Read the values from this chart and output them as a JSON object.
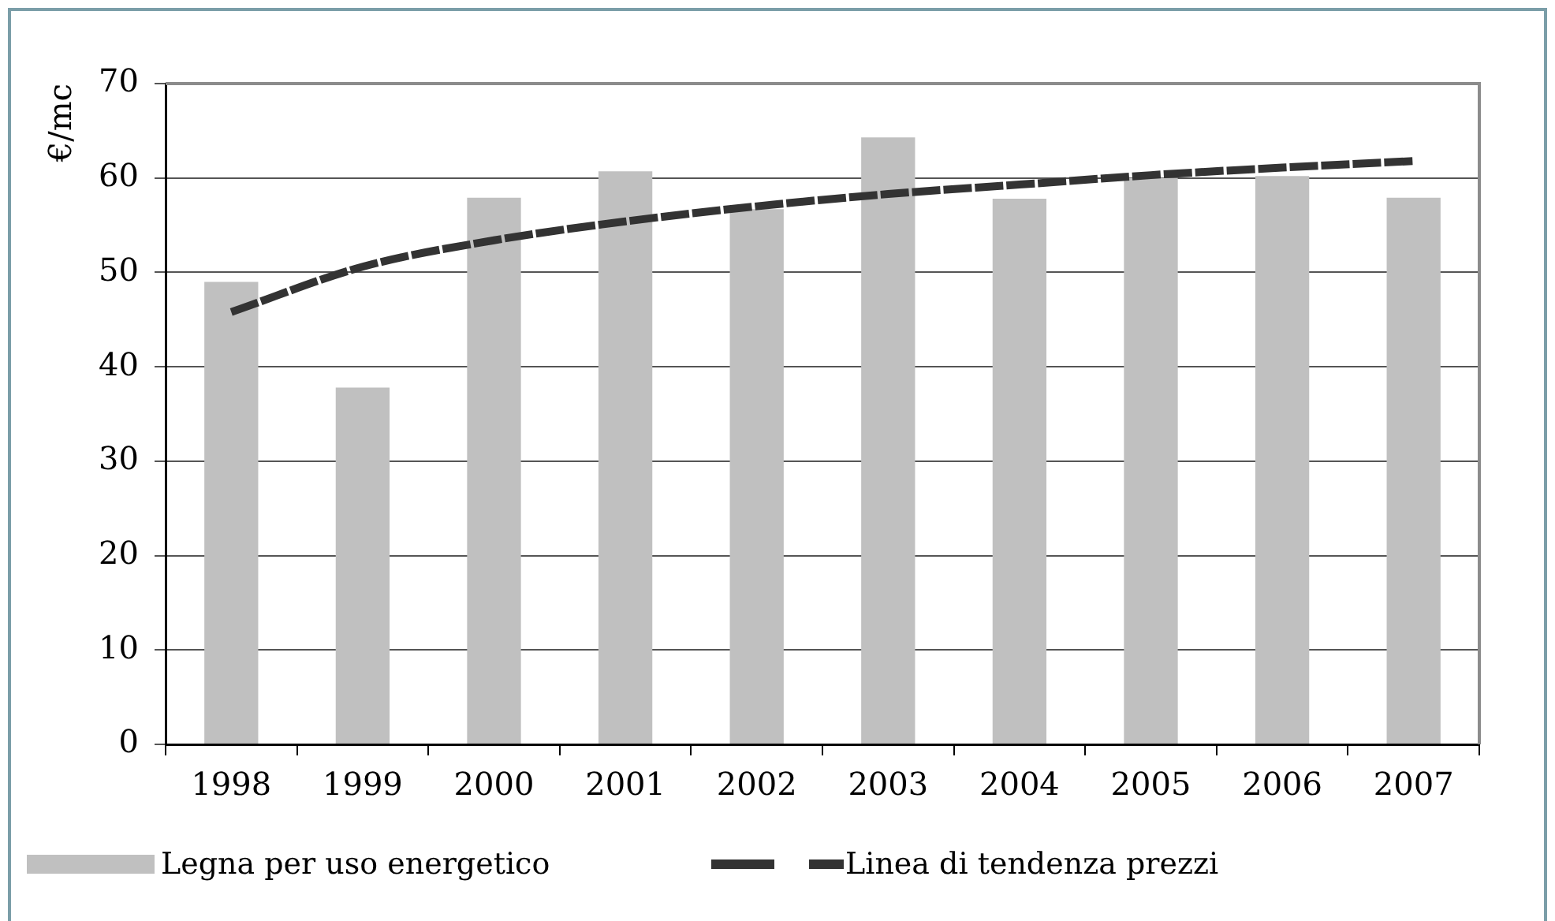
{
  "chart_data": {
    "type": "bar",
    "ylabel": "€/mc",
    "categories": [
      "1998",
      "1999",
      "2000",
      "2001",
      "2002",
      "2003",
      "2004",
      "2005",
      "2006",
      "2007"
    ],
    "series": [
      {
        "name": "Legna per uso energetico",
        "color": "#c0c0c0",
        "values": [
          49,
          37.8,
          57.9,
          60.7,
          56.7,
          64.3,
          57.8,
          60,
          60.2,
          57.9
        ]
      },
      {
        "name": "Linea di tendenza prezzi",
        "type": "line",
        "color": "#333333",
        "values": [
          45.8,
          50.6,
          53.4,
          55.4,
          57,
          58.3,
          59.3,
          60.3,
          61.1,
          61.8
        ]
      }
    ],
    "ylim": [
      0,
      70
    ],
    "yticks": [
      0,
      10,
      20,
      30,
      40,
      50,
      60,
      70
    ],
    "grid": "y",
    "legend": "bottom",
    "marker": "none",
    "line_style": "dashed"
  }
}
